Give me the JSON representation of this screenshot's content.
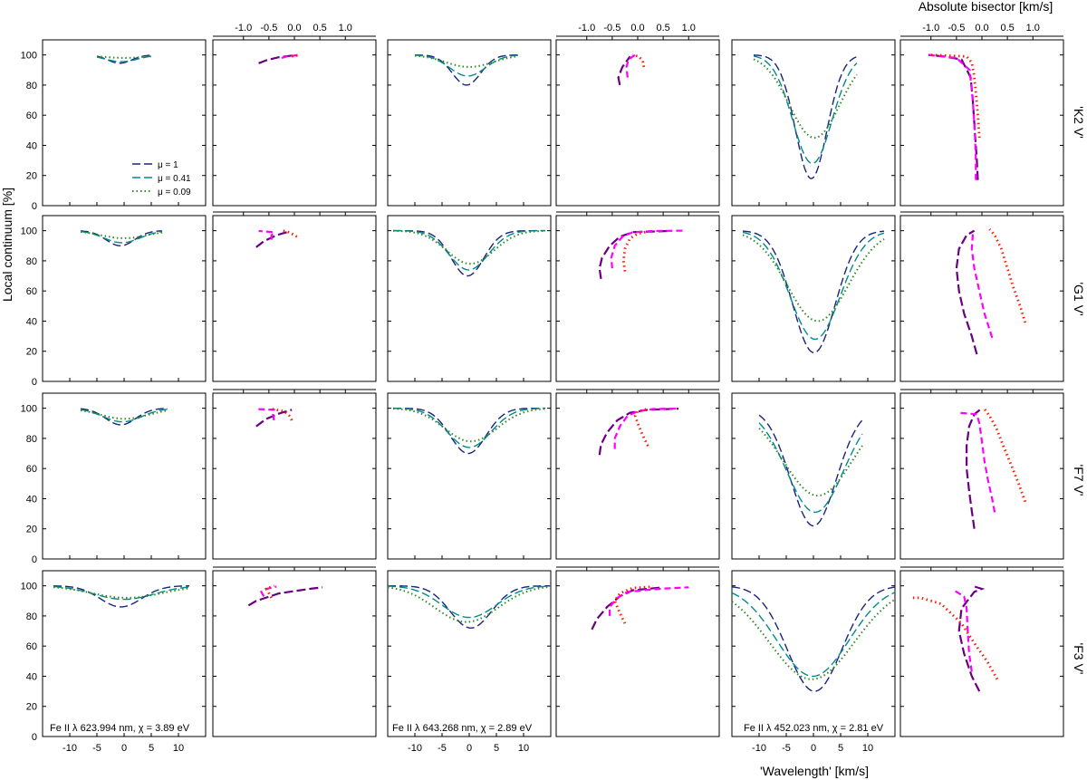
{
  "labels": {
    "ylabel": "Local continuum [%]",
    "xlabel": "'Wavelength' [km/s]",
    "top_xlabel": "Absolute bisector [km/s]"
  },
  "rows": [
    "'K2 V'",
    "'G1 V'",
    "'F7 V'",
    "'F3 V'"
  ],
  "lines": [
    "Fe II λ 623.994 nm, χ = 3.89 eV",
    "Fe II λ 643.268 nm, χ = 2.89 eV",
    "Fe II λ 452.023 nm, χ = 2.81 eV"
  ],
  "legend": [
    "μ = 1",
    "μ = 0.41",
    "μ = 0.09"
  ],
  "colors": {
    "profile": [
      "#1a237e",
      "#008b8b",
      "#2e8b22"
    ],
    "bisector": [
      "#6a0080",
      "#ff00ff",
      "#ff1a00"
    ]
  },
  "chart_data": {
    "type": "line",
    "profile_axes": {
      "xlim": [
        -15,
        15
      ],
      "ylim": [
        0,
        110
      ],
      "xticks": [
        "-10",
        "-5",
        "0",
        "5",
        "10"
      ],
      "yticks": [
        "0",
        "20",
        "40",
        "60",
        "80",
        "100"
      ]
    },
    "bisector_axes": {
      "xlim": [
        -1.6,
        1.6
      ],
      "xticks": [
        "-1.0",
        "-0.5",
        "0.0",
        "0.5",
        "1.0"
      ]
    },
    "series_names": [
      "μ = 1",
      "μ = 0.41",
      "μ = 0.09"
    ],
    "profiles": [
      [
        {
          "c": [
            -0.8,
            -0.5,
            0.0
          ],
          "d": [
            5.5,
            4.5,
            2.0
          ],
          "w": [
            2.2,
            3.0,
            4.0
          ],
          "lo": -5,
          "hi": 5
        },
        {
          "c": [
            -0.5,
            -0.3,
            0.0
          ],
          "d": [
            20,
            14,
            8
          ],
          "w": [
            2.6,
            3.3,
            4.3
          ],
          "lo": -10,
          "hi": 9
        },
        {
          "c": [
            -0.4,
            -0.2,
            0.2
          ],
          "d": [
            82,
            72,
            55
          ],
          "w": [
            2.9,
            3.6,
            4.6
          ],
          "lo": -11,
          "hi": 8
        }
      ],
      [
        {
          "c": [
            -0.7,
            -0.4,
            0.0
          ],
          "d": [
            10,
            8,
            5
          ],
          "w": [
            2.6,
            3.3,
            4.2
          ],
          "lo": -8,
          "hi": 7
        },
        {
          "c": [
            -0.3,
            -0.1,
            0.2
          ],
          "d": [
            30,
            26,
            22
          ],
          "w": [
            3.0,
            3.6,
            4.3
          ],
          "lo": -14,
          "hi": 14
        },
        {
          "c": [
            0.1,
            0.3,
            0.8
          ],
          "d": [
            81,
            72,
            60
          ],
          "w": [
            3.9,
            4.6,
            5.6
          ],
          "lo": -13,
          "hi": 13
        }
      ],
      [
        {
          "c": [
            -0.6,
            -0.3,
            0.1
          ],
          "d": [
            11,
            9,
            7
          ],
          "w": [
            2.8,
            3.6,
            4.5
          ],
          "lo": -8,
          "hi": 8
        },
        {
          "c": [
            -0.2,
            0.0,
            0.3
          ],
          "d": [
            30,
            26,
            22
          ],
          "w": [
            3.3,
            4.0,
            4.8
          ],
          "lo": -14,
          "hi": 14
        },
        {
          "c": [
            0.0,
            0.3,
            0.8
          ],
          "d": [
            78,
            69,
            58
          ],
          "w": [
            4.2,
            5.2,
            6.3
          ],
          "lo": -10,
          "hi": 9
        }
      ],
      [
        {
          "c": [
            -0.6,
            0.0,
            0.5
          ],
          "d": [
            14,
            9,
            8
          ],
          "w": [
            3.8,
            5.5,
            6.5
          ],
          "lo": -13,
          "hi": 12
        },
        {
          "c": [
            0.3,
            0.0,
            -0.5
          ],
          "d": [
            28,
            21,
            24
          ],
          "w": [
            3.8,
            5.0,
            5.8
          ],
          "lo": -15,
          "hi": 15
        },
        {
          "c": [
            0.2,
            -0.1,
            -0.3
          ],
          "d": [
            70,
            60,
            62
          ],
          "w": [
            5.0,
            6.6,
            7.8
          ],
          "lo": -15,
          "hi": 15
        }
      ]
    ],
    "bisectors": [
      [
        [
          [
            [
              -0.7,
              94.5
            ],
            [
              -0.55,
              96.5
            ],
            [
              -0.3,
              98.5
            ],
            [
              0.0,
              99.8
            ]
          ],
          [
            [
              -0.25,
              98
            ],
            [
              -0.15,
              99
            ],
            [
              0.05,
              99.8
            ]
          ],
          [
            [
              -0.05,
              99
            ],
            [
              0.0,
              99.5
            ],
            [
              0.1,
              99.8
            ]
          ]
        ],
        [
          [
            [
              -0.35,
              80
            ],
            [
              -0.38,
              85
            ],
            [
              -0.3,
              92
            ],
            [
              -0.15,
              99
            ]
          ],
          [
            [
              -0.2,
              85
            ],
            [
              -0.22,
              92
            ],
            [
              -0.18,
              97
            ],
            [
              -0.05,
              100
            ]
          ],
          [
            [
              0.12,
              92
            ],
            [
              0.1,
              96
            ],
            [
              0.02,
              99
            ],
            [
              -0.1,
              100
            ]
          ]
        ],
        [
          [
            [
              -0.08,
              17
            ],
            [
              -0.1,
              30
            ],
            [
              -0.14,
              50
            ],
            [
              -0.18,
              70
            ],
            [
              -0.22,
              85
            ],
            [
              -0.4,
              97
            ],
            [
              -0.75,
              99
            ],
            [
              -1.05,
              100
            ]
          ],
          [
            [
              -0.12,
              17
            ],
            [
              -0.12,
              30
            ],
            [
              -0.14,
              50
            ],
            [
              -0.18,
              70
            ],
            [
              -0.24,
              90
            ],
            [
              -0.5,
              98
            ],
            [
              -1.05,
              100
            ]
          ],
          [
            [
              -0.05,
              45
            ],
            [
              -0.08,
              60
            ],
            [
              -0.12,
              75
            ],
            [
              -0.16,
              88
            ],
            [
              -0.2,
              95
            ],
            [
              -0.3,
              99
            ],
            [
              -1.0,
              100
            ]
          ]
        ]
      ],
      [
        [
          [
            [
              -0.75,
              89
            ],
            [
              -0.6,
              93
            ],
            [
              -0.35,
              97
            ],
            [
              -0.1,
              99.5
            ]
          ],
          [
            [
              -0.45,
              94
            ],
            [
              -0.45,
              97
            ],
            [
              -0.4,
              99
            ],
            [
              -0.7,
              99.8
            ]
          ],
          [
            [
              0.05,
              96
            ],
            [
              -0.05,
              98
            ],
            [
              -0.15,
              99.5
            ],
            [
              -0.25,
              100
            ]
          ]
        ],
        [
          [
            [
              -0.72,
              68
            ],
            [
              -0.75,
              75
            ],
            [
              -0.7,
              82
            ],
            [
              -0.55,
              90
            ],
            [
              -0.35,
              96
            ],
            [
              -0.1,
              99
            ],
            [
              0.6,
              99.8
            ]
          ],
          [
            [
              -0.5,
              75
            ],
            [
              -0.52,
              82
            ],
            [
              -0.45,
              90
            ],
            [
              -0.3,
              96
            ],
            [
              -0.1,
              99
            ],
            [
              0.3,
              99.8
            ],
            [
              0.9,
              100
            ]
          ],
          [
            [
              -0.25,
              73
            ],
            [
              -0.28,
              80
            ],
            [
              -0.25,
              88
            ],
            [
              -0.15,
              95
            ],
            [
              0.0,
              98
            ],
            [
              0.2,
              99.5
            ]
          ]
        ],
        [
          [
            [
              -0.1,
              18
            ],
            [
              -0.2,
              30
            ],
            [
              -0.35,
              45
            ],
            [
              -0.45,
              60
            ],
            [
              -0.5,
              75
            ],
            [
              -0.45,
              88
            ],
            [
              -0.3,
              97
            ],
            [
              -0.15,
              100
            ]
          ],
          [
            [
              0.2,
              29
            ],
            [
              0.05,
              45
            ],
            [
              -0.05,
              60
            ],
            [
              -0.15,
              75
            ],
            [
              -0.2,
              88
            ],
            [
              -0.18,
              97
            ],
            [
              -0.15,
              100
            ]
          ],
          [
            [
              0.85,
              39
            ],
            [
              0.75,
              50
            ],
            [
              0.62,
              62
            ],
            [
              0.5,
              75
            ],
            [
              0.38,
              88
            ],
            [
              0.25,
              97
            ],
            [
              0.15,
              101
            ]
          ]
        ]
      ],
      [
        [
          [
            [
              -0.75,
              88
            ],
            [
              -0.55,
              93
            ],
            [
              -0.3,
              96.5
            ],
            [
              -0.05,
              99
            ]
          ],
          [
            [
              -0.4,
              92
            ],
            [
              -0.42,
              96
            ],
            [
              -0.4,
              99
            ],
            [
              -0.75,
              99.5
            ]
          ],
          [
            [
              -0.05,
              92
            ],
            [
              -0.1,
              95
            ],
            [
              -0.2,
              98
            ],
            [
              -0.45,
              99.5
            ]
          ]
        ],
        [
          [
            [
              -0.75,
              69
            ],
            [
              -0.72,
              76
            ],
            [
              -0.6,
              84
            ],
            [
              -0.4,
              92
            ],
            [
              -0.15,
              97
            ],
            [
              0.2,
              99
            ],
            [
              0.8,
              99.7
            ]
          ],
          [
            [
              -0.45,
              73
            ],
            [
              -0.45,
              80
            ],
            [
              -0.35,
              88
            ],
            [
              -0.2,
              95
            ],
            [
              0.0,
              98
            ],
            [
              0.3,
              99.5
            ],
            [
              0.8,
              99.8
            ]
          ],
          [
            [
              0.2,
              75
            ],
            [
              0.1,
              82
            ],
            [
              0.0,
              90
            ],
            [
              -0.05,
              95
            ],
            [
              0.0,
              98
            ],
            [
              0.2,
              99.5
            ]
          ]
        ],
        [
          [
            [
              -0.15,
              20
            ],
            [
              -0.2,
              32
            ],
            [
              -0.25,
              45
            ],
            [
              -0.3,
              60
            ],
            [
              -0.3,
              75
            ],
            [
              -0.25,
              88
            ],
            [
              -0.15,
              96
            ],
            [
              0.0,
              100
            ]
          ],
          [
            [
              0.25,
              31
            ],
            [
              0.2,
              40
            ],
            [
              0.12,
              52
            ],
            [
              0.05,
              65
            ],
            [
              0.0,
              78
            ],
            [
              -0.05,
              90
            ],
            [
              -0.1,
              96
            ],
            [
              -0.45,
              97
            ]
          ],
          [
            [
              0.85,
              38
            ],
            [
              0.72,
              50
            ],
            [
              0.58,
              62
            ],
            [
              0.42,
              75
            ],
            [
              0.28,
              87
            ],
            [
              0.15,
              95
            ],
            [
              0.05,
              99.5
            ]
          ]
        ]
      ],
      [
        [
          [
            [
              -0.9,
              87
            ],
            [
              -0.75,
              90
            ],
            [
              -0.3,
              95
            ],
            [
              0.3,
              98
            ],
            [
              0.55,
              99
            ]
          ],
          [
            [
              -0.6,
              93
            ],
            [
              -0.65,
              96
            ],
            [
              -0.55,
              98
            ],
            [
              -0.35,
              99.5
            ]
          ],
          [
            [
              -0.45,
              92
            ],
            [
              -0.5,
              95
            ],
            [
              -0.55,
              98
            ],
            [
              -0.4,
              100
            ]
          ]
        ],
        [
          [
            [
              -0.9,
              71
            ],
            [
              -0.8,
              78
            ],
            [
              -0.6,
              86
            ],
            [
              -0.35,
              93
            ],
            [
              -0.1,
              97
            ],
            [
              0.5,
              99
            ]
          ],
          [
            [
              -0.55,
              80
            ],
            [
              -0.55,
              86
            ],
            [
              -0.4,
              92
            ],
            [
              -0.2,
              96
            ],
            [
              0.4,
              98
            ],
            [
              1.0,
              99
            ]
          ],
          [
            [
              -0.25,
              75
            ],
            [
              -0.35,
              82
            ],
            [
              -0.45,
              90
            ],
            [
              -0.35,
              95
            ],
            [
              -0.1,
              98.5
            ],
            [
              0.3,
              99.5
            ]
          ]
        ],
        [
          [
            [
              -0.05,
              30
            ],
            [
              -0.2,
              40
            ],
            [
              -0.35,
              55
            ],
            [
              -0.45,
              70
            ],
            [
              -0.4,
              85
            ],
            [
              -0.15,
              96
            ],
            [
              0.0,
              98
            ],
            [
              -0.2,
              100
            ]
          ],
          [
            [
              -0.2,
              43
            ],
            [
              -0.25,
              55
            ],
            [
              -0.28,
              70
            ],
            [
              -0.3,
              85
            ],
            [
              -0.35,
              93
            ],
            [
              -0.55,
              97
            ]
          ],
          [
            [
              0.3,
              38
            ],
            [
              0.1,
              50
            ],
            [
              -0.15,
              62
            ],
            [
              -0.4,
              75
            ],
            [
              -0.8,
              88
            ],
            [
              -1.2,
              92
            ],
            [
              -1.4,
              92
            ]
          ]
        ]
      ]
    ]
  }
}
